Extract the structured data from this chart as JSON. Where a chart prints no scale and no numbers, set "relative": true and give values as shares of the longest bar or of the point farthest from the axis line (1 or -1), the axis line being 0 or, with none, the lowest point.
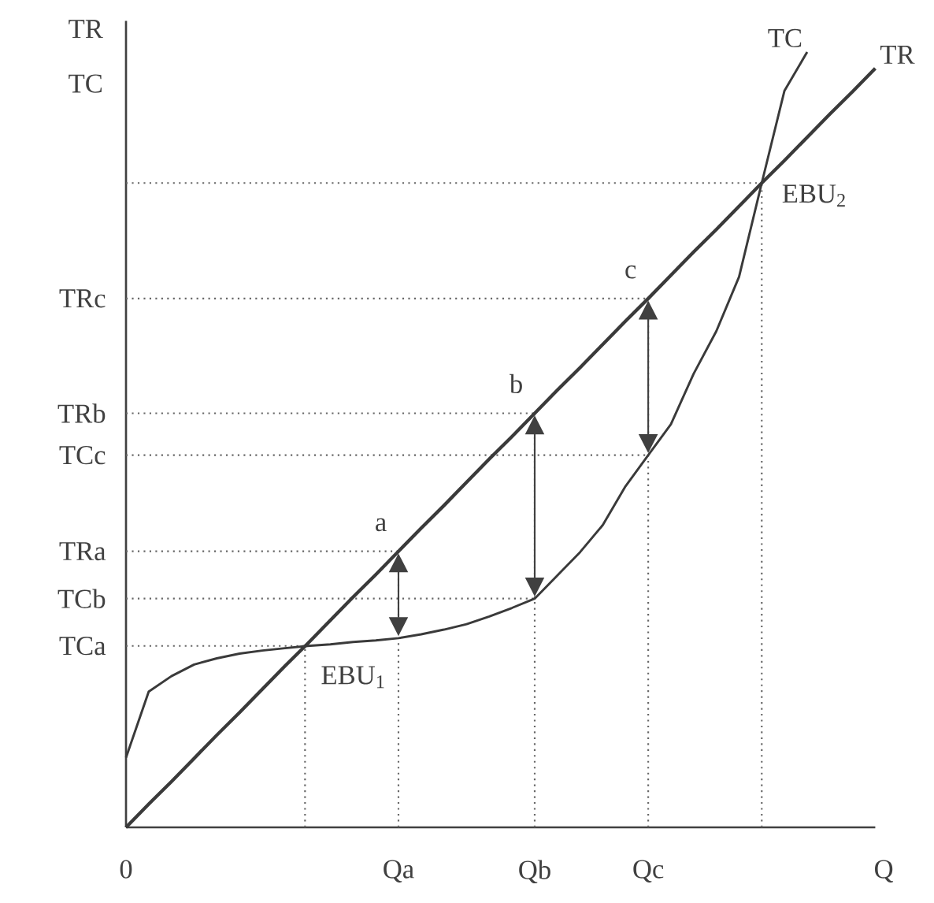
{
  "chart_data": {
    "type": "line",
    "relative": true,
    "xlabel": "Q",
    "ylabel": "TR TC",
    "categories": [
      "0",
      null,
      null,
      null,
      null,
      null,
      null,
      null,
      null,
      null,
      null,
      null,
      "Qa",
      null,
      null,
      null,
      null,
      null,
      "Qb",
      null,
      null,
      null,
      null,
      "Qc",
      null,
      null,
      null,
      null,
      null,
      null,
      null,
      null,
      null,
      null
    ],
    "ref_lines": [
      {
        "axis": "y",
        "value": 0.234,
        "label": "TCa",
        "line_style": "dotted"
      },
      {
        "axis": "y",
        "value": 0.295,
        "label": "TCb",
        "line_style": "dotted"
      },
      {
        "axis": "y",
        "value": 0.356,
        "label": "TRa",
        "line_style": "dotted"
      },
      {
        "axis": "y",
        "value": 0.48,
        "label": "TCc",
        "line_style": "dotted"
      },
      {
        "axis": "y",
        "value": 0.534,
        "label": "TRb",
        "line_style": "dotted"
      },
      {
        "axis": "y",
        "value": 0.682,
        "label": "TRc",
        "line_style": "dotted"
      },
      {
        "axis": "y",
        "value": 0.831,
        "line_style": "dotted"
      }
    ],
    "series": [
      {
        "name": "TR",
        "color": "#3a3a3a",
        "values": [
          0,
          0.03,
          0.059,
          0.089,
          0.119,
          0.148,
          0.178,
          0.208,
          0.237,
          0.267,
          0.297,
          0.326,
          0.356,
          0.386,
          0.415,
          0.445,
          0.475,
          0.504,
          0.534,
          0.564,
          0.593,
          0.623,
          0.653,
          0.682,
          0.712,
          0.742,
          0.771,
          0.801,
          0.831,
          0.86,
          0.89,
          0.92,
          0.949,
          0.979
        ]
      },
      {
        "name": "TC",
        "color": "#3a3a3a",
        "values": [
          0.09,
          0.175,
          0.195,
          0.21,
          0.218,
          0.224,
          0.228,
          0.231,
          0.234,
          0.236,
          0.239,
          0.241,
          0.244,
          0.249,
          0.255,
          0.262,
          0.272,
          0.283,
          0.295,
          0.325,
          0.355,
          0.39,
          0.44,
          0.48,
          0.52,
          0.585,
          0.64,
          0.71,
          0.831,
          0.95,
          1.0,
          null,
          null,
          null
        ]
      }
    ],
    "annotations": [
      {
        "text": "a",
        "x": "Qa",
        "y": 0.356
      },
      {
        "text": "b",
        "x": "Qb",
        "y": 0.534
      },
      {
        "text": "c",
        "x": "Qc",
        "y": 0.682
      },
      "EBU$_{1}$",
      "EBU$_{2}$"
    ],
    "marker": "none",
    "line_style": "solid"
  }
}
